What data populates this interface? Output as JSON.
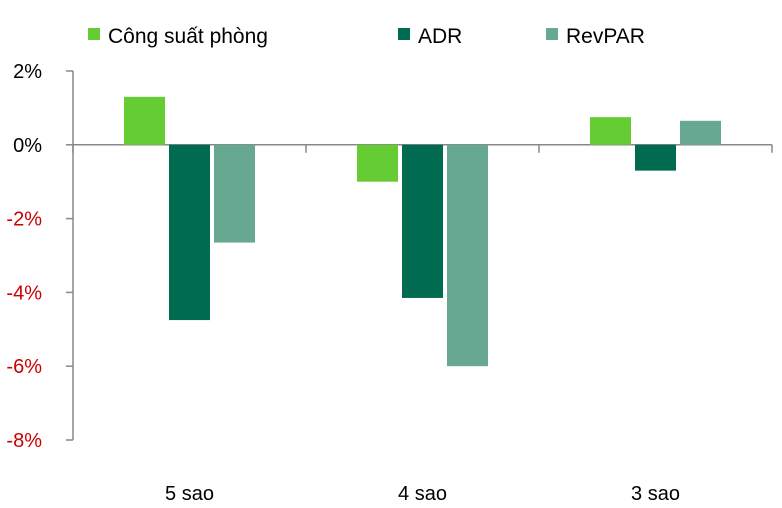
{
  "chart_data": {
    "type": "bar",
    "title": "",
    "xlabel": "",
    "ylabel": "",
    "categories": [
      "5 sao",
      "4 sao",
      "3 sao"
    ],
    "series": [
      {
        "name": "Công suất phòng",
        "color": "#66cc33",
        "values": [
          1.3,
          -1.0,
          0.75
        ]
      },
      {
        "name": "ADR",
        "color": "#006b50",
        "values": [
          -4.75,
          -4.15,
          -0.7
        ]
      },
      {
        "name": "RevPAR",
        "color": "#66a892",
        "values": [
          -2.65,
          -6.0,
          0.65
        ]
      }
    ],
    "ylim": [
      -8,
      2
    ],
    "yticks": [
      2,
      0,
      -2,
      -4,
      -6,
      -8
    ],
    "ytick_labels": [
      "2%",
      "0%",
      "-2%",
      "-4%",
      "-6%",
      "-8%"
    ],
    "negative_tick_color": "#cc0000",
    "positive_tick_color": "#000000",
    "legend_position": "top",
    "grid": false
  }
}
